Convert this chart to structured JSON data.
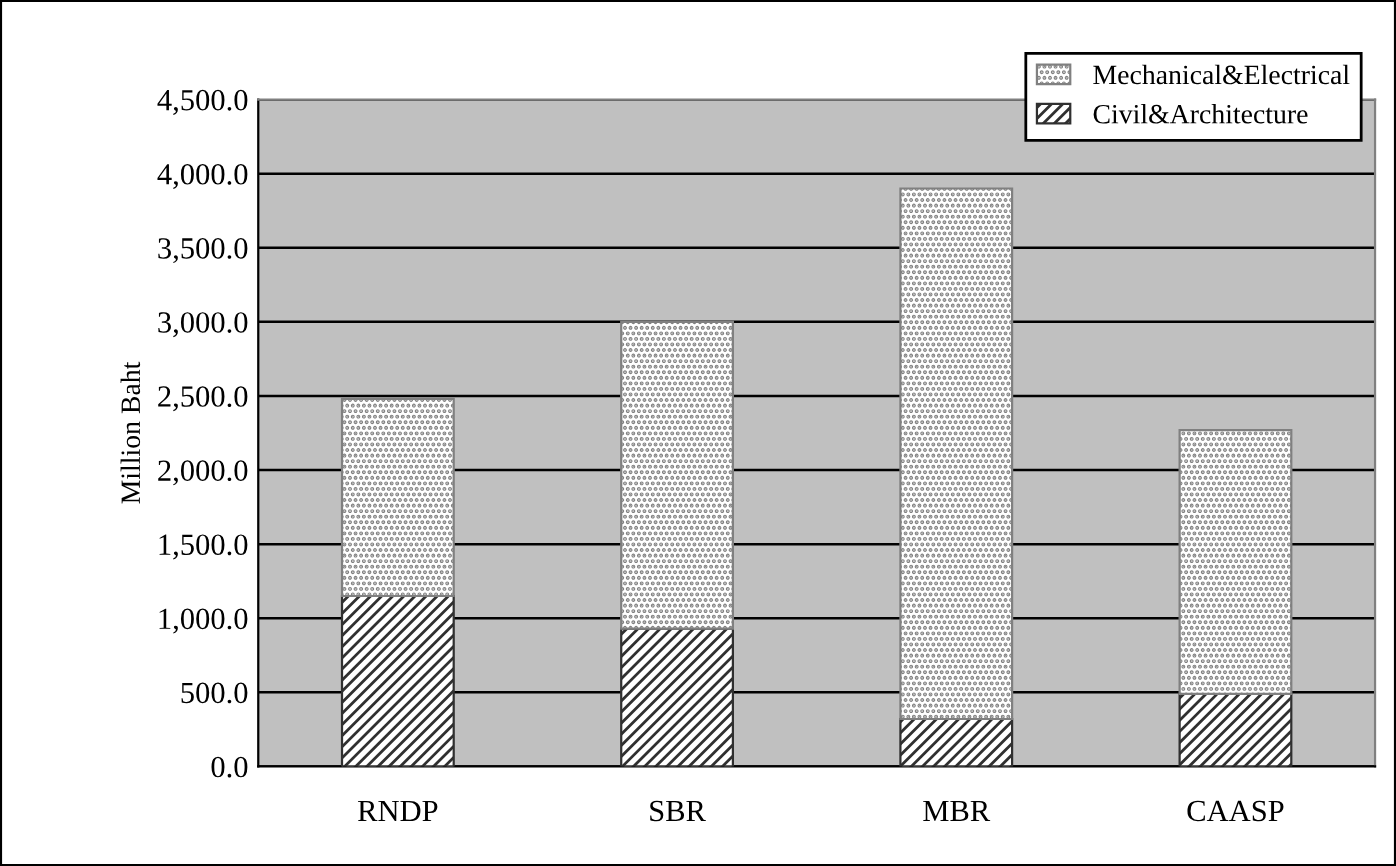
{
  "chart_data": {
    "type": "bar",
    "stacked": true,
    "ylabel": "Million Baht",
    "categories": [
      "RNDP",
      "SBR",
      "MBR",
      "CAASP"
    ],
    "series": [
      {
        "name": "Civil&Architecture",
        "color": "#303030",
        "values": [
          1150,
          930,
          320,
          490
        ]
      },
      {
        "name": "Mechanical&Electrical",
        "color": "#808080",
        "values": [
          1330,
          2070,
          3580,
          1780
        ]
      }
    ],
    "ylim": [
      0,
      4500
    ],
    "yticks": [
      {
        "value": 0,
        "label": "0.0"
      },
      {
        "value": 500,
        "label": "500.0"
      },
      {
        "value": 1000,
        "label": "1,000.0"
      },
      {
        "value": 1500,
        "label": "1,500.0"
      },
      {
        "value": 2000,
        "label": "2,000.0"
      },
      {
        "value": 2500,
        "label": "2,500.0"
      },
      {
        "value": 3000,
        "label": "3,000.0"
      },
      {
        "value": 3500,
        "label": "3,500.0"
      },
      {
        "value": 4000,
        "label": "4,000.0"
      },
      {
        "value": 4500,
        "label": "4,500.0"
      }
    ],
    "grid": "y",
    "legend": "top right"
  }
}
